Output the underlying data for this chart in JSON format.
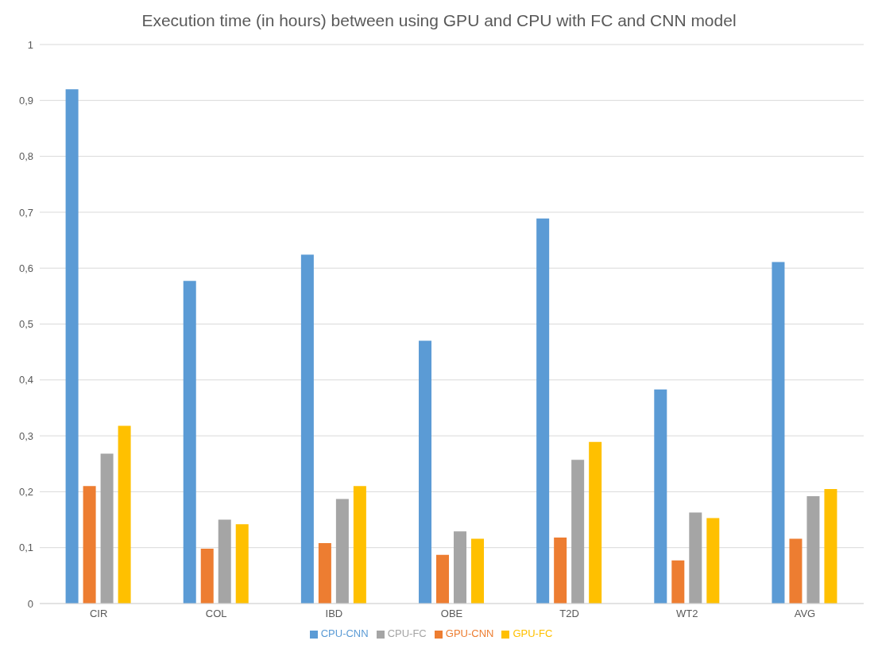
{
  "chart_data": {
    "type": "bar",
    "title": "Execution time (in hours) between using GPU and CPU with FC and CNN model",
    "categories": [
      "CIR",
      "COL",
      "IBD",
      "OBE",
      "T2D",
      "WT2",
      "AVG"
    ],
    "series": [
      {
        "name": "CPU-CNN",
        "color": "#5b9bd5",
        "values": [
          0.92,
          0.577,
          0.624,
          0.47,
          0.689,
          0.383,
          0.611
        ]
      },
      {
        "name": "GPU-CNN",
        "color": "#ed7d31",
        "values": [
          0.21,
          0.098,
          0.108,
          0.087,
          0.118,
          0.077,
          0.116
        ]
      },
      {
        "name": "CPU-FC",
        "color": "#a5a5a5",
        "values": [
          0.268,
          0.15,
          0.187,
          0.129,
          0.257,
          0.163,
          0.192
        ]
      },
      {
        "name": "GPU-FC",
        "color": "#ffc000",
        "values": [
          0.318,
          0.142,
          0.21,
          0.116,
          0.289,
          0.153,
          0.205
        ]
      }
    ],
    "ylim": [
      0,
      1
    ],
    "yticks": [
      {
        "value": 0,
        "label": "0"
      },
      {
        "value": 0.1,
        "label": "0,1"
      },
      {
        "value": 0.2,
        "label": "0,2"
      },
      {
        "value": 0.3,
        "label": "0,3"
      },
      {
        "value": 0.4,
        "label": "0,4"
      },
      {
        "value": 0.5,
        "label": "0,5"
      },
      {
        "value": 0.6,
        "label": "0,6"
      },
      {
        "value": 0.7,
        "label": "0,7"
      },
      {
        "value": 0.8,
        "label": "0,8"
      },
      {
        "value": 0.9,
        "label": "0,9"
      },
      {
        "value": 1,
        "label": "1"
      }
    ],
    "grid": "y",
    "legend": "bottom"
  }
}
